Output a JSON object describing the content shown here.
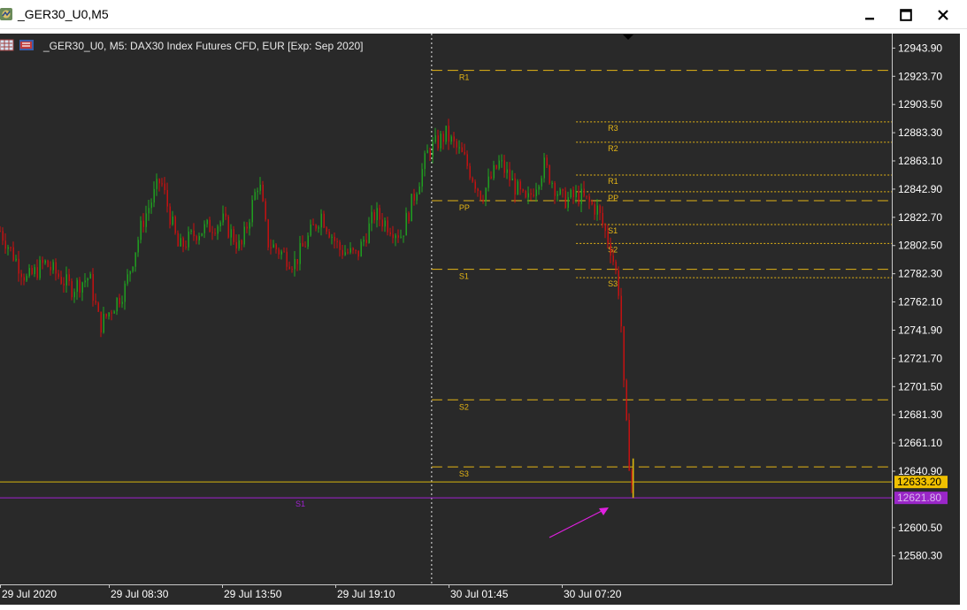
{
  "window": {
    "title": "_GER30_U0,M5",
    "minimize_icon": "minimize-icon",
    "maximize_icon": "maximize-icon",
    "close_icon": "close-icon"
  },
  "chart": {
    "caption": "_GER30_U0, M5:  DAX30 Index Futures CFD, EUR [Exp: Sep 2020]",
    "colors": {
      "background": "#292929",
      "bull": "#1fa81f",
      "bear": "#d01010",
      "pivot_level": "#e5b515",
      "bid_line": "#d8b60d",
      "s1_line": "#a020d0",
      "arrow": "#e020e0",
      "axis_text": "#ffffff"
    }
  },
  "chart_data": {
    "type": "candlestick",
    "timeframe": "M5",
    "ylim": [
      12570.0,
      12953.0
    ],
    "y_ticks": [
      "12943.90",
      "12923.70",
      "12903.50",
      "12883.30",
      "12863.10",
      "12842.90",
      "12822.70",
      "12802.50",
      "12782.30",
      "12762.10",
      "12741.90",
      "12721.70",
      "12701.50",
      "12681.30",
      "12661.10",
      "12640.90",
      "12600.50",
      "12580.30"
    ],
    "x_labels": [
      "29 Jul 2020",
      "29 Jul 08:30",
      "29 Jul 13:50",
      "29 Jul 19:10",
      "30 Jul 01:45",
      "30 Jul 07:20"
    ],
    "period_separator_label": "30 Jul 01:45",
    "price_labels": [
      {
        "label": "bid",
        "value": "12633.20"
      },
      {
        "label": "S1",
        "value": "12621.80"
      }
    ],
    "pivot_levels_daily": [
      {
        "name": "R1",
        "value": 12927.9
      },
      {
        "name": "PP",
        "value": 12834.6
      },
      {
        "name": "S1",
        "value": 12785.5
      },
      {
        "name": "S2",
        "value": 12692.0
      },
      {
        "name": "S3",
        "value": 12644.0
      }
    ],
    "pivot_levels_session": [
      {
        "name": "R3",
        "value": 12891.0
      },
      {
        "name": "R2",
        "value": 12876.5
      },
      {
        "name": "R1",
        "value": 12853.0
      },
      {
        "name": "PP",
        "value": 12841.0
      },
      {
        "name": "S1",
        "value": 12817.5
      },
      {
        "name": "S2",
        "value": 12804.0
      },
      {
        "name": "S3",
        "value": 12779.5
      }
    ],
    "horizontal_lines": [
      {
        "name": "bid",
        "value": 12633.2
      },
      {
        "name": "S1",
        "value": 12621.8
      }
    ],
    "price_path": [
      {
        "t": 0.0,
        "p": 12813
      },
      {
        "t": 0.03,
        "p": 12778
      },
      {
        "t": 0.05,
        "p": 12790
      },
      {
        "t": 0.08,
        "p": 12772
      },
      {
        "t": 0.1,
        "p": 12780
      },
      {
        "t": 0.112,
        "p": 12745
      },
      {
        "t": 0.14,
        "p": 12772
      },
      {
        "t": 0.16,
        "p": 12820
      },
      {
        "t": 0.18,
        "p": 12850
      },
      {
        "t": 0.2,
        "p": 12800
      },
      {
        "t": 0.22,
        "p": 12812
      },
      {
        "t": 0.25,
        "p": 12820
      },
      {
        "t": 0.27,
        "p": 12800
      },
      {
        "t": 0.29,
        "p": 12850
      },
      {
        "t": 0.3,
        "p": 12805
      },
      {
        "t": 0.33,
        "p": 12790
      },
      {
        "t": 0.36,
        "p": 12825
      },
      {
        "t": 0.38,
        "p": 12800
      },
      {
        "t": 0.4,
        "p": 12795
      },
      {
        "t": 0.42,
        "p": 12825
      },
      {
        "t": 0.45,
        "p": 12810
      },
      {
        "t": 0.48,
        "p": 12870
      },
      {
        "t": 0.5,
        "p": 12882
      },
      {
        "t": 0.52,
        "p": 12865
      },
      {
        "t": 0.54,
        "p": 12838
      },
      {
        "t": 0.56,
        "p": 12862
      },
      {
        "t": 0.59,
        "p": 12832
      },
      {
        "t": 0.61,
        "p": 12860
      },
      {
        "t": 0.63,
        "p": 12835
      },
      {
        "t": 0.65,
        "p": 12838
      },
      {
        "t": 0.67,
        "p": 12828
      },
      {
        "t": 0.685,
        "p": 12800
      },
      {
        "t": 0.693,
        "p": 12775
      },
      {
        "t": 0.697,
        "p": 12740
      },
      {
        "t": 0.7,
        "p": 12690
      },
      {
        "t": 0.705,
        "p": 12650
      },
      {
        "t": 0.71,
        "p": 12622
      }
    ]
  }
}
